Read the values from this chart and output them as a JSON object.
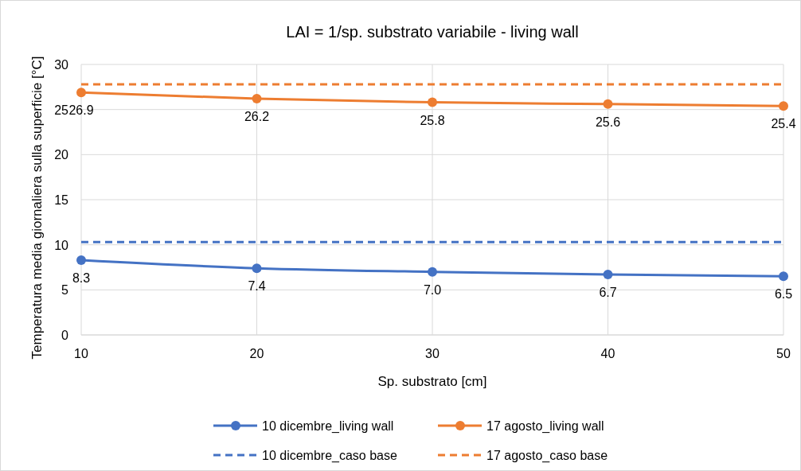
{
  "chart_data": {
    "type": "line",
    "title": "LAI = 1/sp. substrato variabile - living wall",
    "xlabel": "Sp. substrato [cm]",
    "ylabel": "Temperatura media giornaliera sulla superficie [°C]",
    "x": [
      10,
      20,
      30,
      40,
      50
    ],
    "xlim": [
      10,
      50
    ],
    "xticks": [
      10,
      20,
      30,
      40,
      50
    ],
    "ylim": [
      0,
      30
    ],
    "yticks": [
      0,
      5,
      10,
      15,
      20,
      25,
      30
    ],
    "grid": true,
    "legend": "bottom",
    "series": [
      {
        "name": "10 dicembre_living wall",
        "color": "#4472c4",
        "values": [
          8.3,
          7.4,
          7.0,
          6.7,
          6.5
        ],
        "marker": "circle",
        "line_style": "solid",
        "value_labels": [
          "8.3",
          "7.4",
          "7.0",
          "6.7",
          "6.5"
        ]
      },
      {
        "name": "17 agosto_living wall",
        "color": "#ed7d31",
        "values": [
          26.9,
          26.2,
          25.8,
          25.6,
          25.4
        ],
        "marker": "circle",
        "line_style": "solid",
        "value_labels": [
          "26.9",
          "26.2",
          "25.8",
          "25.6",
          "25.4"
        ]
      },
      {
        "name": "10 dicembre_caso base",
        "color": "#4472c4",
        "values": [
          10.3,
          10.3,
          10.3,
          10.3,
          10.3
        ],
        "marker": "none",
        "line_style": "dashed"
      },
      {
        "name": "17 agosto_caso base",
        "color": "#ed7d31",
        "values": [
          27.8,
          27.8,
          27.8,
          27.8,
          27.8
        ],
        "marker": "none",
        "line_style": "dashed"
      }
    ]
  }
}
